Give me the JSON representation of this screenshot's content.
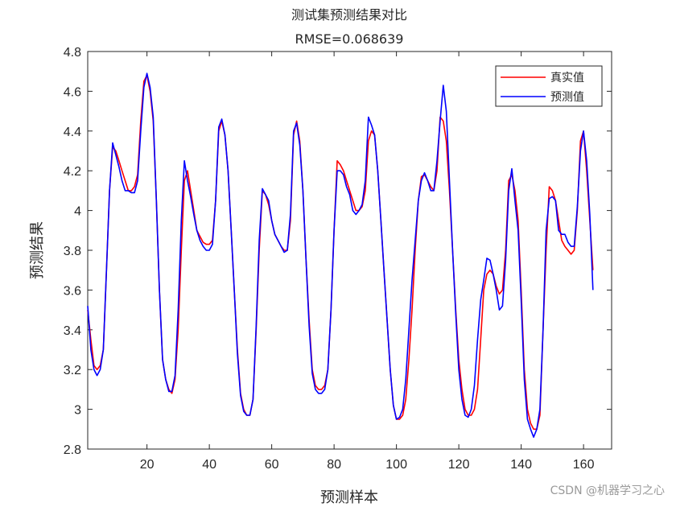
{
  "chart_data": {
    "type": "line",
    "title": "测试集预测结果对比",
    "subtitle": "RMSE=0.068639",
    "xlabel": "预测样本",
    "ylabel": "预测结果",
    "xlim": [
      1,
      169
    ],
    "ylim": [
      2.8,
      4.8
    ],
    "xticks": [
      20,
      40,
      60,
      80,
      100,
      120,
      140,
      160
    ],
    "yticks": [
      2.8,
      3,
      3.2,
      3.4,
      3.6,
      3.8,
      4,
      4.2,
      4.4,
      4.6,
      4.8
    ],
    "ytick_labels": [
      "2.8",
      "3",
      "3.2",
      "3.4",
      "3.6",
      "3.8",
      "4",
      "4.2",
      "4.4",
      "4.6",
      "4.8"
    ],
    "legend_position": "top-right",
    "series": [
      {
        "name": "真实值",
        "color": "#ff0000",
        "points": [
          [
            1,
            3.5
          ],
          [
            2,
            3.35
          ],
          [
            3,
            3.22
          ],
          [
            4,
            3.2
          ],
          [
            5,
            3.22
          ],
          [
            6,
            3.3
          ],
          [
            7,
            3.7
          ],
          [
            8,
            4.1
          ],
          [
            9,
            4.32
          ],
          [
            10,
            4.3
          ],
          [
            11,
            4.25
          ],
          [
            12,
            4.2
          ],
          [
            13,
            4.15
          ],
          [
            14,
            4.1
          ],
          [
            15,
            4.1
          ],
          [
            16,
            4.12
          ],
          [
            17,
            4.18
          ],
          [
            18,
            4.45
          ],
          [
            19,
            4.65
          ],
          [
            20,
            4.68
          ],
          [
            21,
            4.6
          ],
          [
            22,
            4.45
          ],
          [
            23,
            4.05
          ],
          [
            24,
            3.6
          ],
          [
            25,
            3.25
          ],
          [
            26,
            3.15
          ],
          [
            27,
            3.1
          ],
          [
            28,
            3.08
          ],
          [
            29,
            3.15
          ],
          [
            30,
            3.4
          ],
          [
            31,
            3.8
          ],
          [
            32,
            4.15
          ],
          [
            33,
            4.2
          ],
          [
            34,
            4.1
          ],
          [
            35,
            4.0
          ],
          [
            36,
            3.9
          ],
          [
            37,
            3.87
          ],
          [
            38,
            3.84
          ],
          [
            39,
            3.83
          ],
          [
            40,
            3.83
          ],
          [
            41,
            3.85
          ],
          [
            42,
            4.05
          ],
          [
            43,
            4.4
          ],
          [
            44,
            4.45
          ],
          [
            45,
            4.38
          ],
          [
            46,
            4.2
          ],
          [
            47,
            3.9
          ],
          [
            48,
            3.6
          ],
          [
            49,
            3.3
          ],
          [
            50,
            3.08
          ],
          [
            51,
            3.0
          ],
          [
            52,
            2.97
          ],
          [
            53,
            2.97
          ],
          [
            54,
            3.05
          ],
          [
            55,
            3.4
          ],
          [
            56,
            3.8
          ],
          [
            57,
            4.1
          ],
          [
            58,
            4.08
          ],
          [
            59,
            4.03
          ],
          [
            60,
            3.95
          ],
          [
            61,
            3.88
          ],
          [
            62,
            3.85
          ],
          [
            63,
            3.82
          ],
          [
            64,
            3.8
          ],
          [
            65,
            3.8
          ],
          [
            66,
            3.95
          ],
          [
            67,
            4.38
          ],
          [
            68,
            4.45
          ],
          [
            69,
            4.35
          ],
          [
            70,
            4.1
          ],
          [
            71,
            3.75
          ],
          [
            72,
            3.45
          ],
          [
            73,
            3.2
          ],
          [
            74,
            3.12
          ],
          [
            75,
            3.1
          ],
          [
            76,
            3.1
          ],
          [
            77,
            3.12
          ],
          [
            78,
            3.2
          ],
          [
            79,
            3.5
          ],
          [
            80,
            3.9
          ],
          [
            81,
            4.25
          ],
          [
            82,
            4.23
          ],
          [
            83,
            4.2
          ],
          [
            84,
            4.15
          ],
          [
            85,
            4.1
          ],
          [
            86,
            4.05
          ],
          [
            87,
            4.0
          ],
          [
            88,
            4.0
          ],
          [
            89,
            4.02
          ],
          [
            90,
            4.1
          ],
          [
            91,
            4.35
          ],
          [
            92,
            4.4
          ],
          [
            93,
            4.38
          ],
          [
            94,
            4.2
          ],
          [
            95,
            3.95
          ],
          [
            96,
            3.7
          ],
          [
            97,
            3.45
          ],
          [
            98,
            3.2
          ],
          [
            99,
            3.02
          ],
          [
            100,
            2.95
          ],
          [
            101,
            2.95
          ],
          [
            102,
            2.97
          ],
          [
            103,
            3.05
          ],
          [
            104,
            3.25
          ],
          [
            105,
            3.5
          ],
          [
            106,
            3.8
          ],
          [
            107,
            4.05
          ],
          [
            108,
            4.17
          ],
          [
            109,
            4.18
          ],
          [
            110,
            4.15
          ],
          [
            111,
            4.12
          ],
          [
            112,
            4.1
          ],
          [
            113,
            4.2
          ],
          [
            114,
            4.47
          ],
          [
            115,
            4.45
          ],
          [
            116,
            4.35
          ],
          [
            117,
            4.1
          ],
          [
            118,
            3.8
          ],
          [
            119,
            3.5
          ],
          [
            120,
            3.25
          ],
          [
            121,
            3.1
          ],
          [
            122,
            3.0
          ],
          [
            123,
            2.97
          ],
          [
            124,
            2.97
          ],
          [
            125,
            3.0
          ],
          [
            126,
            3.1
          ],
          [
            127,
            3.35
          ],
          [
            128,
            3.6
          ],
          [
            129,
            3.68
          ],
          [
            130,
            3.7
          ],
          [
            131,
            3.68
          ],
          [
            132,
            3.62
          ],
          [
            133,
            3.58
          ],
          [
            134,
            3.6
          ],
          [
            135,
            3.8
          ],
          [
            136,
            4.15
          ],
          [
            137,
            4.18
          ],
          [
            138,
            4.1
          ],
          [
            139,
            3.95
          ],
          [
            140,
            3.6
          ],
          [
            141,
            3.2
          ],
          [
            142,
            3.0
          ],
          [
            143,
            2.93
          ],
          [
            144,
            2.9
          ],
          [
            145,
            2.9
          ],
          [
            146,
            2.97
          ],
          [
            147,
            3.4
          ],
          [
            148,
            3.8
          ],
          [
            149,
            4.12
          ],
          [
            150,
            4.1
          ],
          [
            151,
            4.05
          ],
          [
            152,
            3.95
          ],
          [
            153,
            3.85
          ],
          [
            154,
            3.82
          ],
          [
            155,
            3.8
          ],
          [
            156,
            3.78
          ],
          [
            157,
            3.8
          ],
          [
            158,
            4.0
          ],
          [
            159,
            4.35
          ],
          [
            160,
            4.4
          ],
          [
            161,
            4.2
          ],
          [
            162,
            3.95
          ],
          [
            163,
            3.7
          ]
        ]
      },
      {
        "name": "预测值",
        "color": "#0000ff",
        "points": [
          [
            1,
            3.52
          ],
          [
            2,
            3.3
          ],
          [
            3,
            3.2
          ],
          [
            4,
            3.17
          ],
          [
            5,
            3.2
          ],
          [
            6,
            3.3
          ],
          [
            7,
            3.7
          ],
          [
            8,
            4.1
          ],
          [
            9,
            4.34
          ],
          [
            10,
            4.28
          ],
          [
            11,
            4.22
          ],
          [
            12,
            4.15
          ],
          [
            13,
            4.1
          ],
          [
            14,
            4.1
          ],
          [
            15,
            4.09
          ],
          [
            16,
            4.09
          ],
          [
            17,
            4.15
          ],
          [
            18,
            4.4
          ],
          [
            19,
            4.62
          ],
          [
            20,
            4.69
          ],
          [
            21,
            4.62
          ],
          [
            22,
            4.47
          ],
          [
            23,
            4.05
          ],
          [
            24,
            3.6
          ],
          [
            25,
            3.25
          ],
          [
            26,
            3.15
          ],
          [
            27,
            3.09
          ],
          [
            28,
            3.09
          ],
          [
            29,
            3.17
          ],
          [
            30,
            3.5
          ],
          [
            31,
            3.95
          ],
          [
            32,
            4.25
          ],
          [
            33,
            4.15
          ],
          [
            34,
            4.07
          ],
          [
            35,
            3.98
          ],
          [
            36,
            3.9
          ],
          [
            37,
            3.85
          ],
          [
            38,
            3.82
          ],
          [
            39,
            3.8
          ],
          [
            40,
            3.8
          ],
          [
            41,
            3.83
          ],
          [
            42,
            4.05
          ],
          [
            43,
            4.42
          ],
          [
            44,
            4.46
          ],
          [
            45,
            4.38
          ],
          [
            46,
            4.2
          ],
          [
            47,
            3.9
          ],
          [
            48,
            3.6
          ],
          [
            49,
            3.28
          ],
          [
            50,
            3.07
          ],
          [
            51,
            2.99
          ],
          [
            52,
            2.97
          ],
          [
            53,
            2.97
          ],
          [
            54,
            3.05
          ],
          [
            55,
            3.42
          ],
          [
            56,
            3.85
          ],
          [
            57,
            4.11
          ],
          [
            58,
            4.08
          ],
          [
            59,
            4.05
          ],
          [
            60,
            3.95
          ],
          [
            61,
            3.88
          ],
          [
            62,
            3.85
          ],
          [
            63,
            3.82
          ],
          [
            64,
            3.79
          ],
          [
            65,
            3.8
          ],
          [
            66,
            3.98
          ],
          [
            67,
            4.4
          ],
          [
            68,
            4.44
          ],
          [
            69,
            4.33
          ],
          [
            70,
            4.1
          ],
          [
            71,
            3.75
          ],
          [
            72,
            3.42
          ],
          [
            73,
            3.18
          ],
          [
            74,
            3.1
          ],
          [
            75,
            3.08
          ],
          [
            76,
            3.08
          ],
          [
            77,
            3.1
          ],
          [
            78,
            3.2
          ],
          [
            79,
            3.5
          ],
          [
            80,
            3.9
          ],
          [
            81,
            4.2
          ],
          [
            82,
            4.2
          ],
          [
            83,
            4.18
          ],
          [
            84,
            4.12
          ],
          [
            85,
            4.08
          ],
          [
            86,
            4.0
          ],
          [
            87,
            3.98
          ],
          [
            88,
            4.0
          ],
          [
            89,
            4.03
          ],
          [
            90,
            4.15
          ],
          [
            91,
            4.47
          ],
          [
            92,
            4.43
          ],
          [
            93,
            4.38
          ],
          [
            94,
            4.2
          ],
          [
            95,
            3.95
          ],
          [
            96,
            3.7
          ],
          [
            97,
            3.45
          ],
          [
            98,
            3.2
          ],
          [
            99,
            3.02
          ],
          [
            100,
            2.95
          ],
          [
            101,
            2.96
          ],
          [
            102,
            3.0
          ],
          [
            103,
            3.15
          ],
          [
            104,
            3.4
          ],
          [
            105,
            3.65
          ],
          [
            106,
            3.85
          ],
          [
            107,
            4.05
          ],
          [
            108,
            4.15
          ],
          [
            109,
            4.19
          ],
          [
            110,
            4.15
          ],
          [
            111,
            4.1
          ],
          [
            112,
            4.1
          ],
          [
            113,
            4.25
          ],
          [
            114,
            4.45
          ],
          [
            115,
            4.63
          ],
          [
            116,
            4.5
          ],
          [
            117,
            4.15
          ],
          [
            118,
            3.8
          ],
          [
            119,
            3.48
          ],
          [
            120,
            3.2
          ],
          [
            121,
            3.05
          ],
          [
            122,
            2.97
          ],
          [
            123,
            2.96
          ],
          [
            124,
            3.0
          ],
          [
            125,
            3.12
          ],
          [
            126,
            3.35
          ],
          [
            127,
            3.55
          ],
          [
            128,
            3.65
          ],
          [
            129,
            3.76
          ],
          [
            130,
            3.75
          ],
          [
            131,
            3.68
          ],
          [
            132,
            3.6
          ],
          [
            133,
            3.5
          ],
          [
            134,
            3.52
          ],
          [
            135,
            3.75
          ],
          [
            136,
            4.1
          ],
          [
            137,
            4.21
          ],
          [
            138,
            4.05
          ],
          [
            139,
            3.9
          ],
          [
            140,
            3.55
          ],
          [
            141,
            3.15
          ],
          [
            142,
            2.95
          ],
          [
            143,
            2.9
          ],
          [
            144,
            2.86
          ],
          [
            145,
            2.9
          ],
          [
            146,
            3.0
          ],
          [
            147,
            3.4
          ],
          [
            148,
            3.9
          ],
          [
            149,
            4.06
          ],
          [
            150,
            4.07
          ],
          [
            151,
            4.05
          ],
          [
            152,
            3.9
          ],
          [
            153,
            3.88
          ],
          [
            154,
            3.88
          ],
          [
            155,
            3.84
          ],
          [
            156,
            3.82
          ],
          [
            157,
            3.82
          ],
          [
            158,
            4.02
          ],
          [
            159,
            4.3
          ],
          [
            160,
            4.4
          ],
          [
            161,
            4.25
          ],
          [
            162,
            3.98
          ],
          [
            163,
            3.6
          ]
        ]
      }
    ]
  },
  "watermark": "CSDN @机器学习之心"
}
